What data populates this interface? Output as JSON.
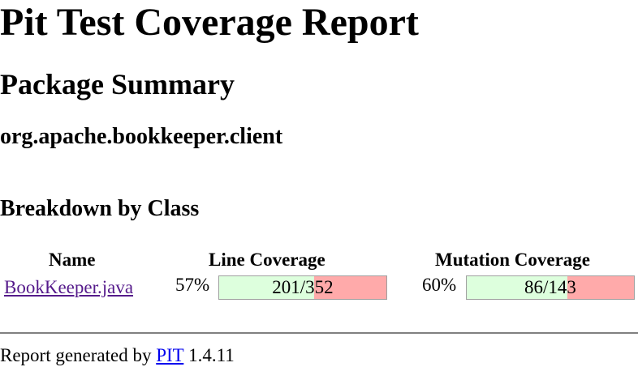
{
  "page": {
    "title": "Pit Test Coverage Report",
    "section_title": "Package Summary",
    "package_name": "org.apache.bookkeeper.client",
    "breakdown_title": "Breakdown by Class"
  },
  "table": {
    "headers": {
      "name": "Name",
      "line_coverage": "Line Coverage",
      "mutation_coverage": "Mutation Coverage"
    },
    "rows": [
      {
        "name": "BookKeeper.java",
        "line_percent": "57%",
        "line_ratio": "201/352",
        "line_fraction": 0.57,
        "mutation_percent": "60%",
        "mutation_ratio": "86/143",
        "mutation_fraction": 0.6
      }
    ]
  },
  "colors": {
    "covered": "#ddffdd",
    "uncovered": "#ffaaaa",
    "visited_link": "#551a8b",
    "link": "#0000ee"
  },
  "footer": {
    "prefix": "Report generated by ",
    "link_text": "PIT",
    "version": "1.4.11"
  }
}
